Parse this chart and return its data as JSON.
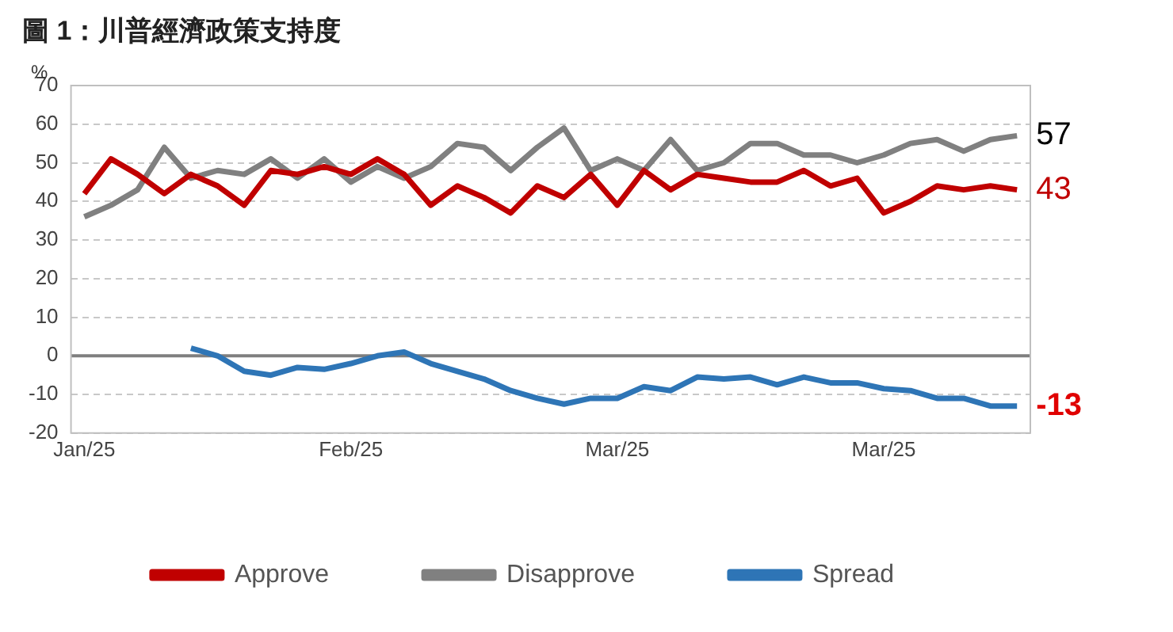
{
  "chart_data": {
    "type": "line",
    "title": "圖 1：川普經濟政策支持度",
    "ylabel": "%",
    "categories": [
      "Jan/25",
      null,
      null,
      null,
      null,
      null,
      null,
      null,
      null,
      null,
      "Feb/25",
      null,
      null,
      null,
      null,
      null,
      null,
      null,
      null,
      null,
      "Mar/25",
      null,
      null,
      null,
      null,
      null,
      null,
      null,
      null,
      null,
      "Mar/25",
      null,
      null,
      null,
      null,
      null
    ],
    "series": [
      {
        "name": "Approve",
        "color": "#c00000",
        "values": [
          42,
          51,
          47,
          42,
          47,
          44,
          39,
          48,
          47,
          49,
          47,
          51,
          47,
          39,
          44,
          41,
          37,
          44,
          41,
          47,
          39,
          48,
          43,
          47,
          46,
          45,
          45,
          48,
          44,
          46,
          37,
          40,
          44,
          43,
          44,
          43
        ]
      },
      {
        "name": "Disapprove",
        "color": "#808080",
        "values": [
          36,
          39,
          43,
          54,
          46,
          48,
          47,
          51,
          46,
          51,
          45,
          49,
          46,
          49,
          55,
          54,
          48,
          54,
          59,
          48,
          51,
          48,
          56,
          48,
          50,
          55,
          55,
          52,
          52,
          50,
          52,
          55,
          56,
          53,
          56,
          57
        ]
      },
      {
        "name": "Spread",
        "color": "#2e75b6",
        "values": [
          null,
          null,
          null,
          null,
          2,
          0,
          -4,
          -5,
          -3,
          -3.5,
          -2,
          0,
          1,
          -2,
          -4,
          -6,
          -9,
          -11,
          -12.5,
          -11,
          -11,
          -8,
          -9,
          -5.5,
          -6,
          -5.5,
          -7.5,
          -5.5,
          -7,
          -7,
          -8.5,
          -9,
          -11,
          -11,
          -13,
          -13
        ]
      }
    ],
    "ylim": [
      -20,
      70
    ],
    "yticks": [
      -20,
      -10,
      0,
      10,
      20,
      30,
      40,
      50,
      60,
      70
    ],
    "grid": "y",
    "legend": "bottom",
    "marker": "none",
    "line_style": "solid",
    "ref_lines": [
      {
        "axis": "y",
        "value": 0,
        "color": "#7f7f7f"
      }
    ],
    "annotations": [
      "43",
      "57",
      "-13"
    ]
  }
}
